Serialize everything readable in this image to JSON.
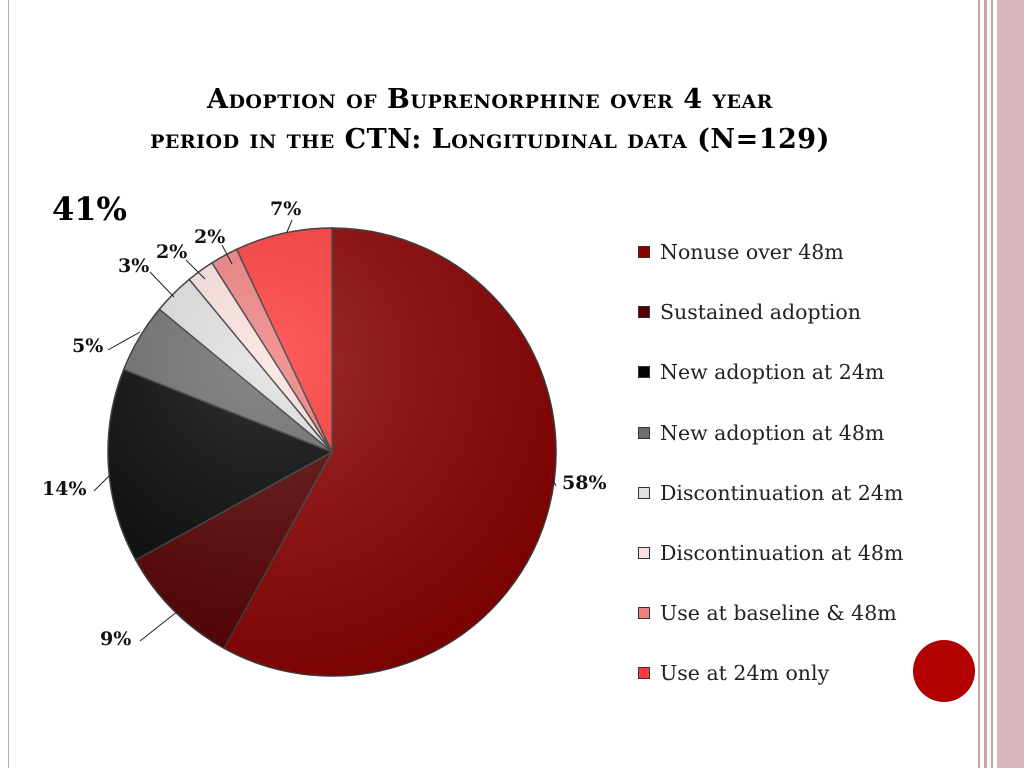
{
  "slide": {
    "title_line1": "Adoption of Buprenorphine over 4 year",
    "title_line2": "period in the CTN:  Longitudinal data (N=129)",
    "callout": "41%"
  },
  "colors": {
    "frame": "#c9a3a8",
    "accent_dot": "#b00000"
  },
  "chart_data": {
    "type": "pie",
    "title": "",
    "slices": [
      {
        "name": "Nonuse over 48m",
        "value": 58,
        "label": "58%",
        "color": "#8b0000"
      },
      {
        "name": "Sustained adoption",
        "value": 9,
        "label": "9%",
        "color": "#560000"
      },
      {
        "name": "New adoption at 24m",
        "value": 14,
        "label": "14%",
        "color": "#050505"
      },
      {
        "name": "New adoption at 48m",
        "value": 5,
        "label": "5%",
        "color": "#6e6e6e"
      },
      {
        "name": "Discontinuation at 24m",
        "value": 3,
        "label": "3%",
        "color": "#e0e0e0"
      },
      {
        "name": "Discontinuation at 48m",
        "value": 2,
        "label": "2%",
        "color": "#fbe1e1"
      },
      {
        "name": "Use at baseline & 48m",
        "value": 2,
        "label": "2%",
        "color": "#f08080"
      },
      {
        "name": "Use at 24m only",
        "value": 7,
        "label": "7%",
        "color": "#ff3a3a"
      }
    ],
    "legend_position": "right"
  }
}
